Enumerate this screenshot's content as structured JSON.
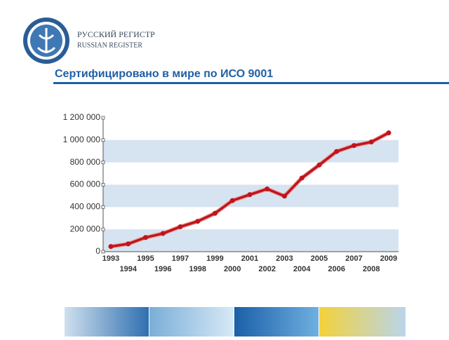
{
  "header": {
    "org_ru": "РУССКИЙ РЕГИСТР",
    "org_en": "RUSSIAN REGISTER"
  },
  "chart_data": {
    "type": "line",
    "title": "Сертифицировано в мире по ИСО 9001",
    "categories": [
      "1993",
      "1994",
      "1995",
      "1996",
      "1997",
      "1998",
      "1999",
      "2000",
      "2001",
      "2002",
      "2003",
      "2004",
      "2005",
      "2006",
      "2007",
      "2008",
      "2009"
    ],
    "series": [
      {
        "color": "#c0141c",
        "values": [
          46000,
          70000,
          127000,
          163000,
          223000,
          272000,
          344000,
          458000,
          511000,
          562000,
          498000,
          660000,
          777000,
          898000,
          951000,
          983000,
          1065000
        ]
      }
    ],
    "ylim": [
      0,
      1200000
    ],
    "yticks": [
      0,
      {
        "value": 200000,
        "label": "200 000"
      },
      {
        "value": 400000,
        "label": "400 000"
      },
      {
        "value": 600000,
        "label": "600 000"
      },
      {
        "value": 800000,
        "label": "800 000"
      },
      {
        "value": 1000000,
        "label": "1 000 000"
      },
      {
        "value": 1200000,
        "label": "1 200 000"
      }
    ],
    "grid": true,
    "band_color": "#d6e3f0"
  }
}
